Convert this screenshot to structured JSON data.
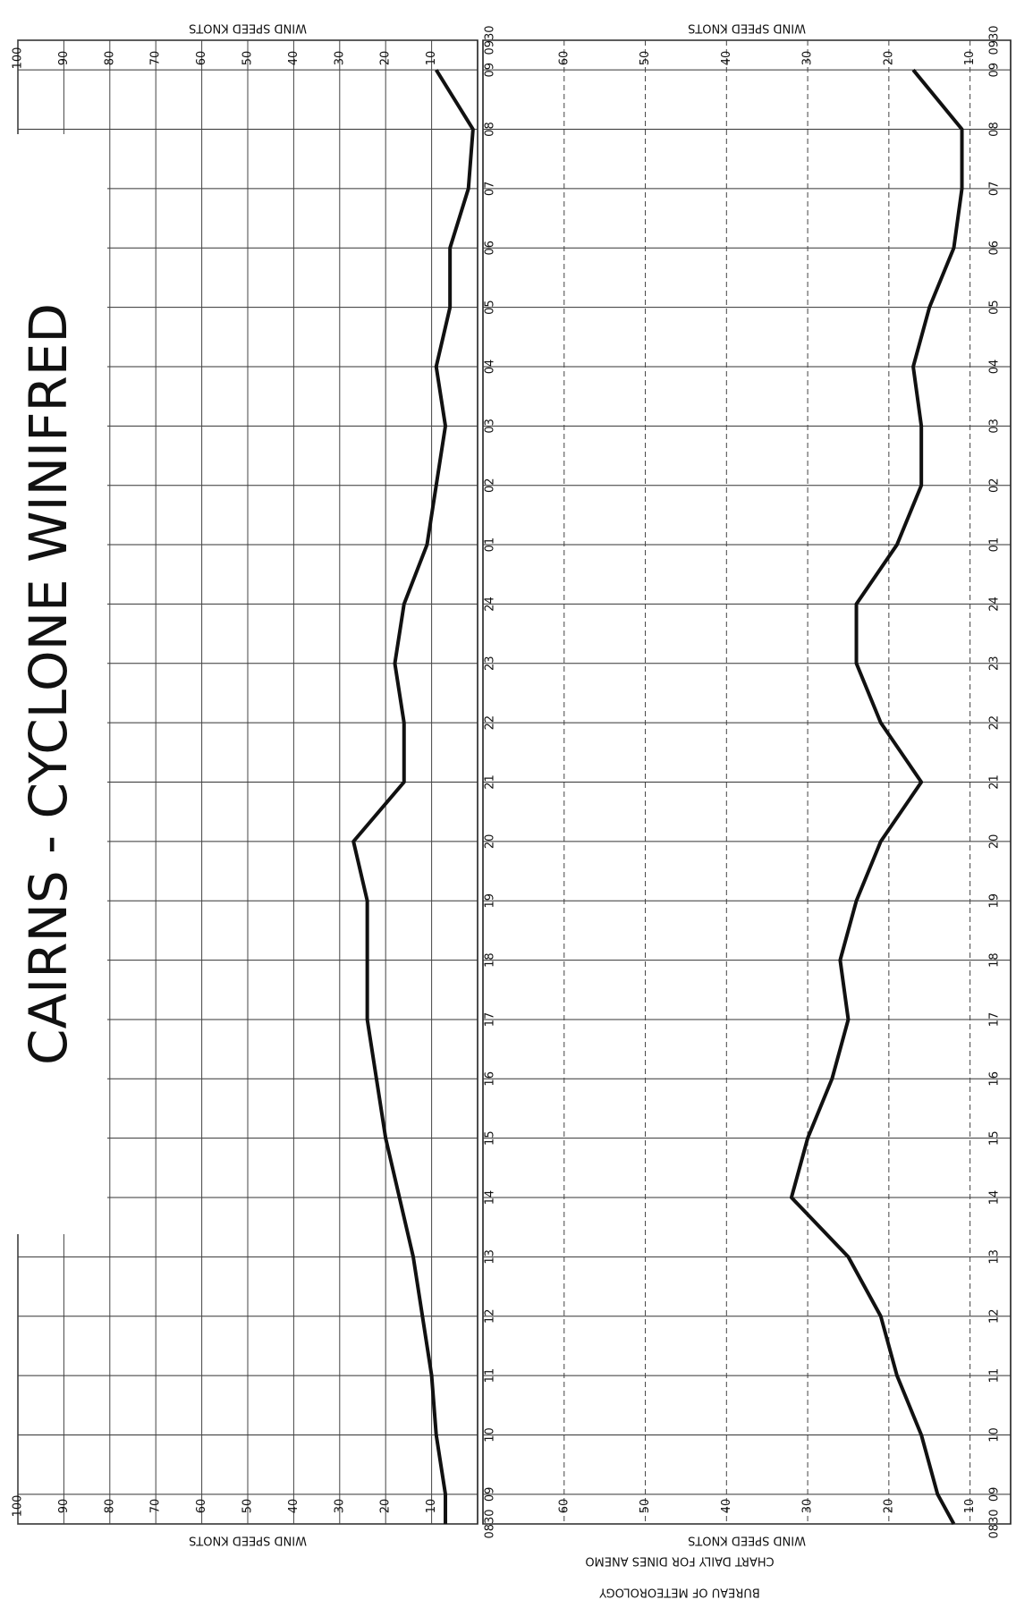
{
  "chart_data": [
    {
      "type": "line",
      "title": "CAIRNS - CYCLONE WINIFRED",
      "y_label": "WIND SPEED KNOTS",
      "categories": [
        "0830",
        "09",
        "10",
        "11",
        "12",
        "13",
        "14",
        "15",
        "16",
        "17",
        "18",
        "19",
        "20",
        "21",
        "22",
        "23",
        "24",
        "01",
        "02",
        "03",
        "04",
        "05",
        "06",
        "07",
        "08",
        "09",
        "0930"
      ],
      "series": [
        {
          "color": "#111111",
          "values": [
            7,
            7,
            9,
            10,
            12,
            14,
            17,
            20,
            22,
            24,
            24,
            24,
            27,
            16,
            16,
            18,
            16,
            11,
            9,
            7,
            9,
            6,
            6,
            2,
            1,
            9,
            null
          ]
        }
      ],
      "ylim": [
        100,
        0
      ],
      "yticks": [
        10,
        20,
        30,
        40,
        50,
        60,
        70,
        80,
        90,
        100
      ],
      "grid": true
    },
    {
      "type": "line",
      "y_label": "WIND SPEED KNOTS",
      "categories": [
        "0830",
        "09",
        "10",
        "11",
        "12",
        "13",
        "14",
        "15",
        "16",
        "17",
        "18",
        "19",
        "20",
        "21",
        "22",
        "23",
        "24",
        "01",
        "02",
        "03",
        "04",
        "05",
        "06",
        "07",
        "08",
        "09",
        "0930"
      ],
      "series": [
        {
          "color": "#111111",
          "values": [
            12,
            14,
            16,
            19,
            21,
            25,
            32,
            30,
            27,
            25,
            26,
            24,
            21,
            16,
            21,
            24,
            24,
            19,
            16,
            16,
            17,
            15,
            12,
            11,
            11,
            17,
            null
          ]
        }
      ],
      "ylim": [
        70,
        5
      ],
      "yticks": [
        10,
        20,
        30,
        40,
        50,
        60
      ],
      "grid": true,
      "annotations": [
        "CHART DAILY FOR DINES ANEMO",
        "BUREAU OF METEOROLOGY"
      ]
    }
  ]
}
